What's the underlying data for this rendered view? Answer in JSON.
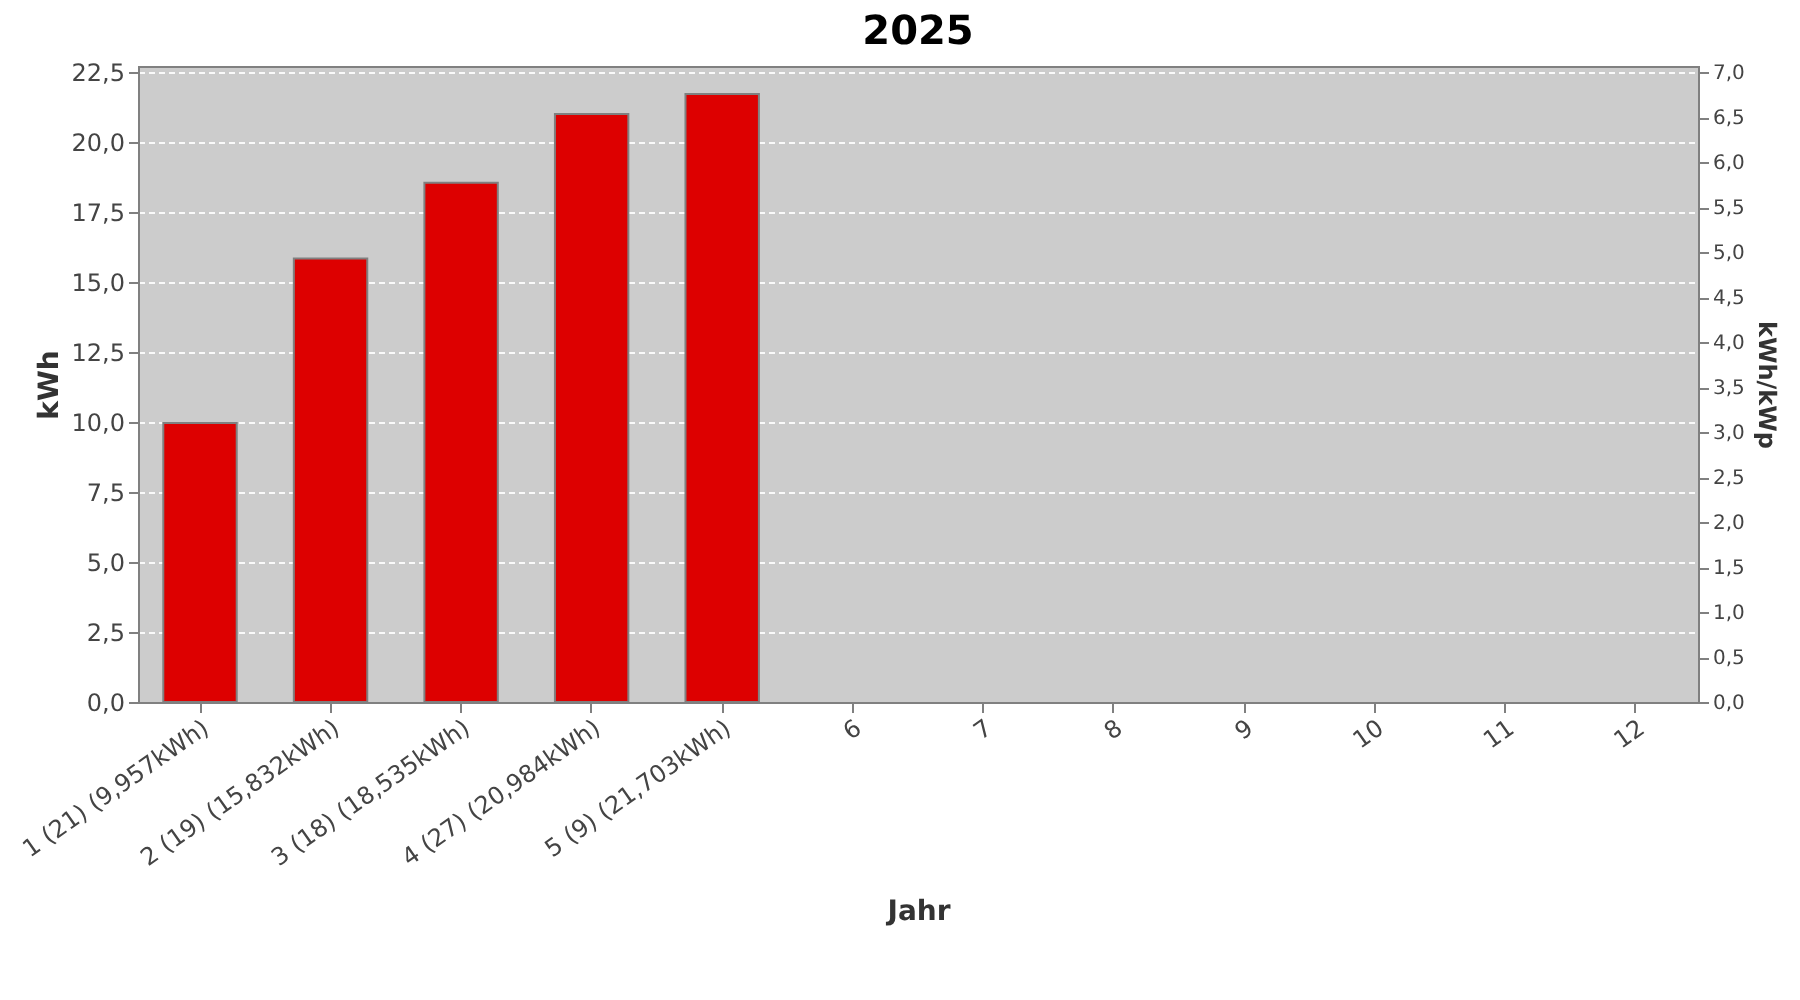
{
  "chart_data": {
    "type": "bar",
    "title": "2025",
    "xlabel": "Jahr",
    "ylabel": "kWh",
    "y2label": "kWh/kWp",
    "categories": [
      "1 (21)  (9,957kWh)",
      "2 (19)  (15,832kWh)",
      "3 (18)  (18,535kWh)",
      "4 (27)  (20,984kWh)",
      "5 (9)  (21,703kWh)",
      "6",
      "7",
      "8",
      "9",
      "10",
      "11",
      "12"
    ],
    "series": [
      {
        "color": "#dd0000",
        "values": [
          9.957,
          15.832,
          18.535,
          20.984,
          21.703,
          null,
          null,
          null,
          null,
          null,
          null,
          null
        ]
      }
    ],
    "ylim": [
      0,
      22.7
    ],
    "yticks": [
      {
        "value": 0,
        "label": "0,0"
      },
      {
        "value": 2.5,
        "label": "2,5"
      },
      {
        "value": 5,
        "label": "5,0"
      },
      {
        "value": 7.5,
        "label": "7,5"
      },
      {
        "value": 10,
        "label": "10,0"
      },
      {
        "value": 12.5,
        "label": "12,5"
      },
      {
        "value": 15,
        "label": "15,0"
      },
      {
        "value": 17.5,
        "label": "17,5"
      },
      {
        "value": 20,
        "label": "20,0"
      },
      {
        "value": 22.5,
        "label": "22,5"
      }
    ],
    "y2lim": [
      0,
      7.07
    ],
    "y2ticks": [
      {
        "value": 0,
        "label": "0,0"
      },
      {
        "value": 0.5,
        "label": "0,5"
      },
      {
        "value": 1,
        "label": "1,0"
      },
      {
        "value": 1.5,
        "label": "1,5"
      },
      {
        "value": 2,
        "label": "2,0"
      },
      {
        "value": 2.5,
        "label": "2,5"
      },
      {
        "value": 3,
        "label": "3,0"
      },
      {
        "value": 3.5,
        "label": "3,5"
      },
      {
        "value": 4,
        "label": "4,0"
      },
      {
        "value": 4.5,
        "label": "4,5"
      },
      {
        "value": 5,
        "label": "5,0"
      },
      {
        "value": 5.5,
        "label": "5,5"
      },
      {
        "value": 6,
        "label": "6,0"
      },
      {
        "value": 6.5,
        "label": "6,5"
      },
      {
        "value": 7,
        "label": "7,0"
      }
    ],
    "grid": "y"
  }
}
